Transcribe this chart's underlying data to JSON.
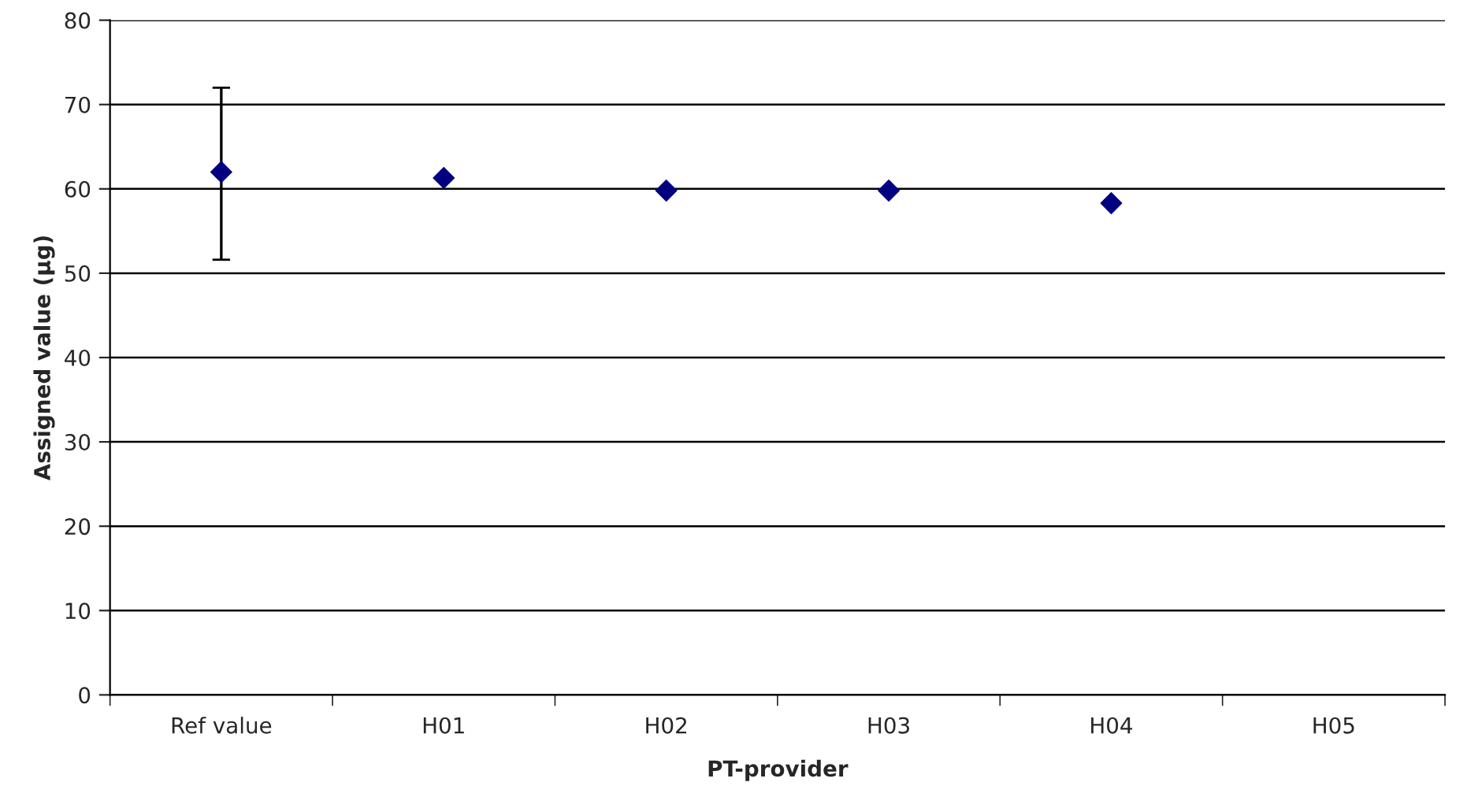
{
  "chart_data": {
    "type": "scatter",
    "xlabel": "PT-provider",
    "ylabel": "Assigned value (µg)",
    "categories": [
      "Ref value",
      "H01",
      "H02",
      "H03",
      "H04",
      "H05"
    ],
    "series": [
      {
        "color": "#000080",
        "values": [
          62,
          61.3,
          59.8,
          59.8,
          58.3,
          null
        ],
        "errors": [
          [
            51.6,
            72
          ],
          null,
          null,
          null,
          null,
          null
        ]
      }
    ],
    "ylim": [
      0,
      80
    ],
    "yticks": [
      0,
      10,
      20,
      30,
      40,
      50,
      60,
      70,
      80
    ],
    "grid": "y",
    "marker": "diamond",
    "legend": false
  }
}
